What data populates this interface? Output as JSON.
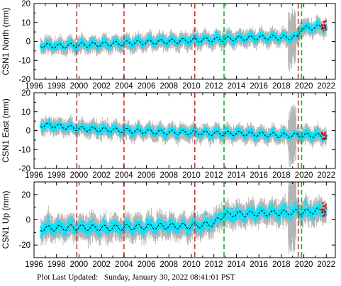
{
  "footer": {
    "label": "Plot Last Updated:",
    "timestamp": "Sunday, January 30, 2022 08:41:01 PST"
  },
  "colors": {
    "data_points": "#00e5ff",
    "error_bars": "#b4b4b4",
    "model_line": "#000000",
    "outliers": "#ff0000",
    "red_event_lines": "#e03030",
    "green_event_lines": "#22aa22"
  },
  "chart_data": [
    {
      "type": "scatter",
      "title": "",
      "xlabel": "",
      "ylabel": "CSN1 North (mm)",
      "xlim": [
        1996,
        2022.8
      ],
      "ylim": [
        -20,
        20
      ],
      "xticks": [
        1996,
        1998,
        2000,
        2002,
        2004,
        2006,
        2008,
        2010,
        2012,
        2014,
        2016,
        2018,
        2020,
        2022
      ],
      "yticks": [
        -20,
        -10,
        0,
        10,
        20
      ],
      "red_vertical_lines": [
        1999.8,
        2004.0,
        2010.3,
        2019.5
      ],
      "green_vertical_lines": [
        2012.9,
        2019.8
      ],
      "series": [
        {
          "x": [
            1996.6,
            1998.0,
            2000.0,
            2002.0,
            2004.0,
            2006.0,
            2008.0,
            2010.0,
            2012.0,
            2014.0,
            2016.0,
            2018.0,
            2019.4,
            2019.7,
            2021.0,
            2022.0
          ],
          "values": [
            -2.0,
            -2.5,
            -2.0,
            -1.5,
            -1.0,
            -0.5,
            0.0,
            0.5,
            1.0,
            1.5,
            2.0,
            2.0,
            2.0,
            6.5,
            7.5,
            8.0
          ]
        }
      ]
    },
    {
      "type": "scatter",
      "title": "",
      "xlabel": "",
      "ylabel": "CSN1 East (mm)",
      "xlim": [
        1996,
        2022.8
      ],
      "ylim": [
        -20,
        20
      ],
      "xticks": [
        1996,
        1998,
        2000,
        2002,
        2004,
        2006,
        2008,
        2010,
        2012,
        2014,
        2016,
        2018,
        2020,
        2022
      ],
      "yticks": [
        -20,
        -10,
        0,
        10,
        20
      ],
      "red_vertical_lines": [
        1999.8,
        2004.0,
        2010.3,
        2019.5
      ],
      "green_vertical_lines": [
        2012.9,
        2019.8
      ],
      "series": [
        {
          "x": [
            1996.6,
            1998.0,
            2000.0,
            2002.0,
            2004.0,
            2006.0,
            2008.0,
            2010.0,
            2012.0,
            2014.0,
            2016.0,
            2018.0,
            2019.4,
            2019.7,
            2021.0,
            2022.0
          ],
          "values": [
            3.0,
            2.5,
            1.0,
            0.5,
            0.0,
            -0.5,
            -1.0,
            -1.0,
            -1.5,
            -1.5,
            -2.0,
            -2.5,
            -2.5,
            -2.5,
            -2.5,
            -3.0
          ]
        }
      ]
    },
    {
      "type": "scatter",
      "title": "",
      "xlabel": "",
      "ylabel": "CSN1 Up (mm)",
      "xlim": [
        1996,
        2022.8
      ],
      "ylim": [
        -30,
        30
      ],
      "xticks": [
        1996,
        1998,
        2000,
        2002,
        2004,
        2006,
        2008,
        2010,
        2012,
        2014,
        2016,
        2018,
        2020,
        2022
      ],
      "yticks": [
        -20,
        0,
        20
      ],
      "red_vertical_lines": [
        1999.8,
        2004.0,
        2010.3,
        2019.5
      ],
      "green_vertical_lines": [
        2012.9,
        2019.8
      ],
      "series": [
        {
          "x": [
            1996.6,
            1998.0,
            2000.0,
            2002.0,
            2004.0,
            2006.0,
            2008.0,
            2010.0,
            2012.0,
            2012.9,
            2014.0,
            2016.0,
            2018.0,
            2019.4,
            2019.7,
            2021.0,
            2022.0
          ],
          "values": [
            -7.0,
            -6.5,
            -6.0,
            -6.5,
            -6.0,
            -5.5,
            -5.0,
            -5.0,
            -3.0,
            4.0,
            4.5,
            5.0,
            5.5,
            6.0,
            6.0,
            7.0,
            7.5
          ]
        }
      ]
    }
  ]
}
